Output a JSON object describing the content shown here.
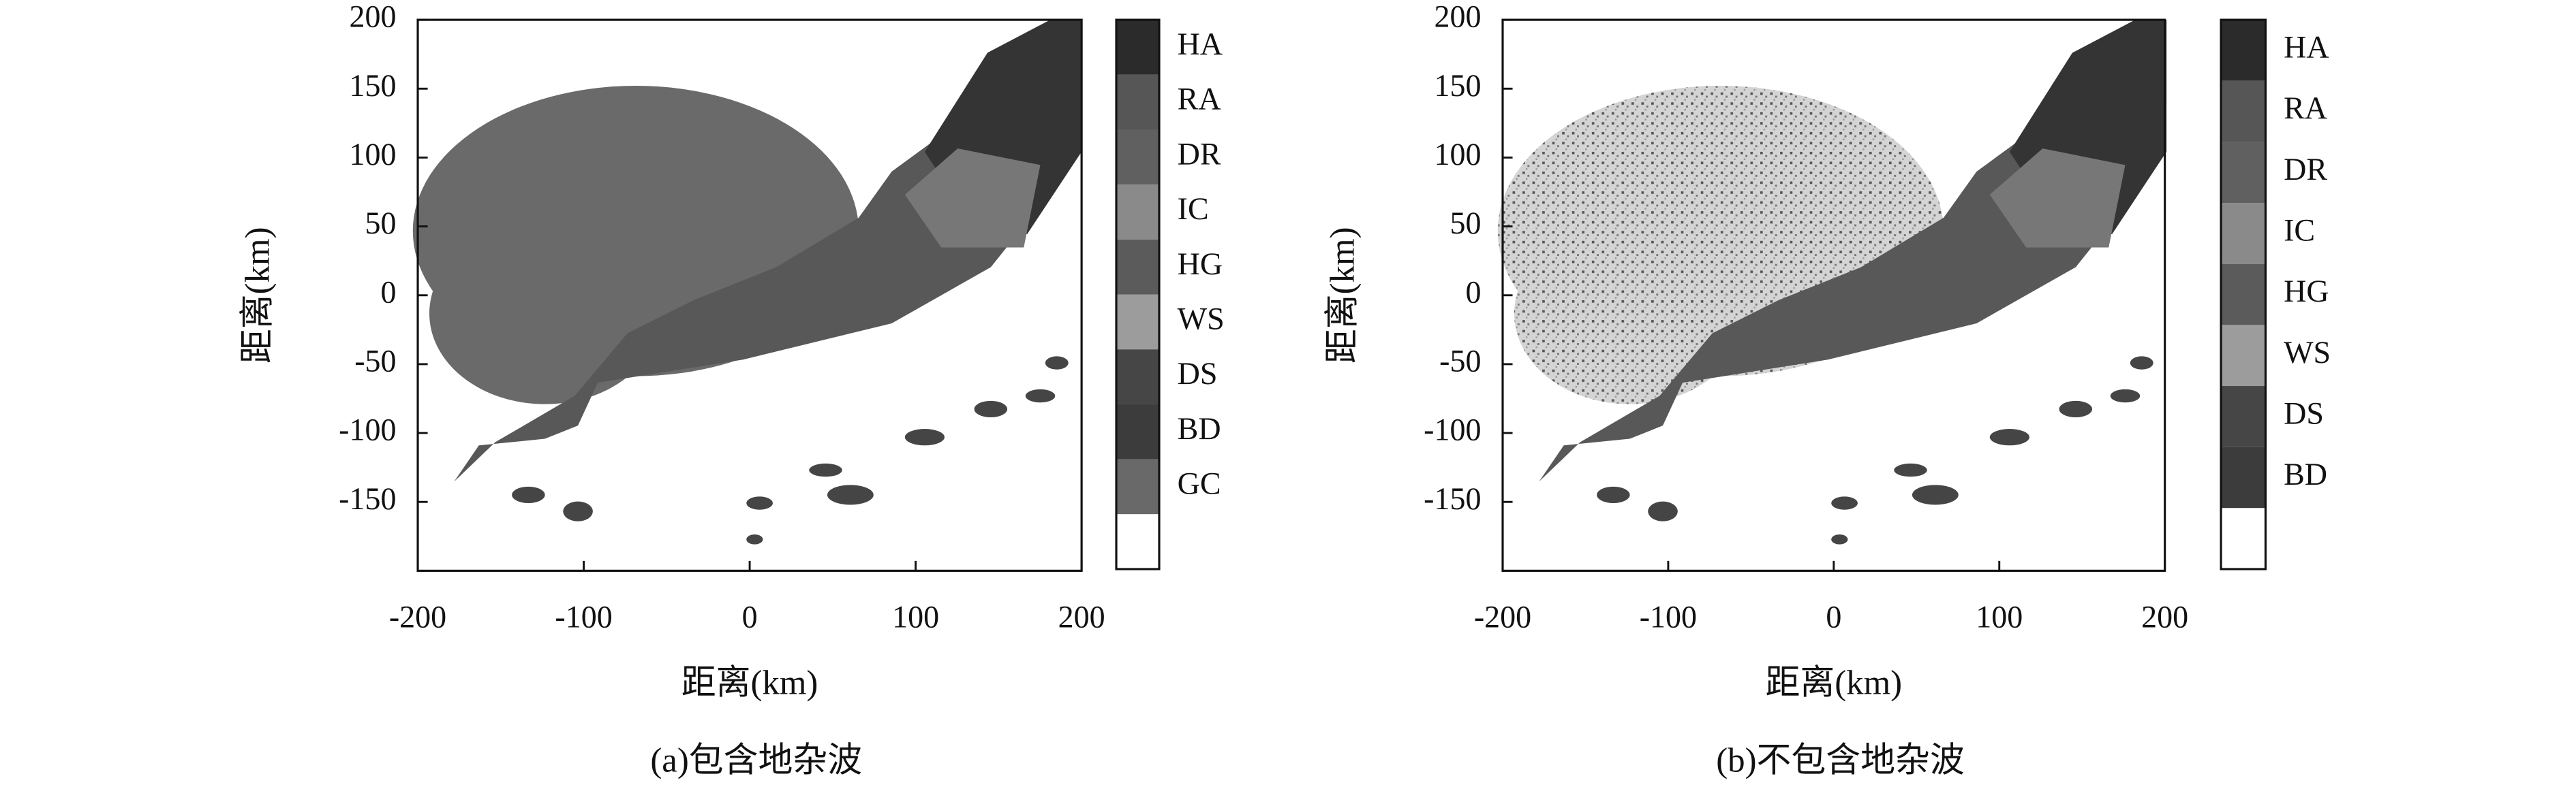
{
  "chart_data": [
    {
      "type": "heatmap",
      "caption": "(a)包含地杂波",
      "xlabel": "距离(km)",
      "ylabel": "距离(km)",
      "xlim": [
        -200,
        200
      ],
      "ylim": [
        -200,
        200
      ],
      "xticks": [
        -200,
        -100,
        0,
        100,
        200
      ],
      "yticks": [
        -150,
        -100,
        -50,
        0,
        50,
        100,
        150,
        200
      ],
      "legend": {
        "labels": [
          "HA",
          "RA",
          "DR",
          "IC",
          "HG",
          "WS",
          "DS",
          "BD",
          "GC",
          null
        ],
        "colors": [
          "#2b2b2b",
          "#565656",
          "#606060",
          "#8a8a8a",
          "#5b5b5b",
          "#9c9c9c",
          "#464646",
          "#3c3c3c",
          "#696969",
          "#ffffff"
        ]
      }
    },
    {
      "type": "heatmap",
      "caption": "(b)不包含地杂波",
      "xlabel": "距离(km)",
      "ylabel": "距离(km)",
      "xlim": [
        -200,
        200
      ],
      "ylim": [
        -200,
        200
      ],
      "xticks": [
        -200,
        -100,
        0,
        100,
        200
      ],
      "yticks": [
        -150,
        -100,
        -50,
        0,
        50,
        100,
        150,
        200
      ],
      "legend": {
        "labels": [
          "HA",
          "RA",
          "DR",
          "IC",
          "HG",
          "WS",
          "DS",
          "BD",
          null
        ],
        "colors": [
          "#2b2b2b",
          "#565656",
          "#606060",
          "#8a8a8a",
          "#5b5b5b",
          "#9c9c9c",
          "#464646",
          "#3c3c3c",
          "#ffffff"
        ]
      }
    }
  ]
}
